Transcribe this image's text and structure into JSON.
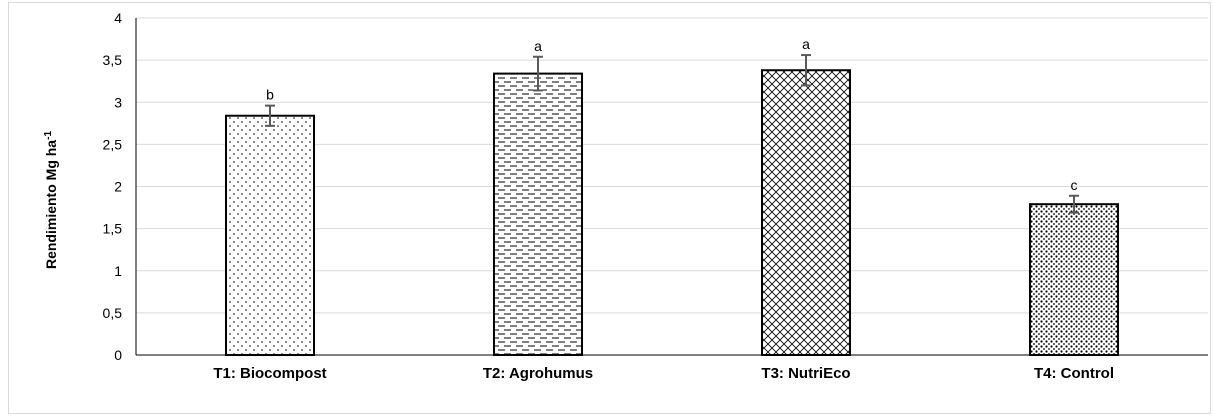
{
  "chart_data": {
    "type": "bar",
    "title": "",
    "xlabel": "",
    "ylabel": "Rendimiento Mg ha",
    "ylabel_superscript": "-1",
    "ylim": [
      0,
      4
    ],
    "yticks": [
      0,
      0.5,
      1,
      1.5,
      2,
      2.5,
      3,
      3.5,
      4
    ],
    "ytick_labels": [
      "0",
      "0,5",
      "1",
      "1,5",
      "2",
      "2,5",
      "3",
      "3,5",
      "4"
    ],
    "grid": true,
    "categories": [
      "T1: Biocompost",
      "T2: Agrohumus",
      "T3: NutriEco",
      "T4: Control"
    ],
    "values": [
      2.84,
      3.34,
      3.38,
      1.79
    ],
    "error": [
      0.12,
      0.2,
      0.18,
      0.1
    ],
    "significance": [
      "b",
      "a",
      "a",
      "c"
    ],
    "patterns": [
      "dots-sparse",
      "dashes",
      "crosshatch",
      "dots-dense"
    ],
    "colors": {
      "bar_fill": "#ffffff",
      "bar_edge": "#000000",
      "grid": "#d9d9d9",
      "error_bar": "#595959"
    }
  }
}
